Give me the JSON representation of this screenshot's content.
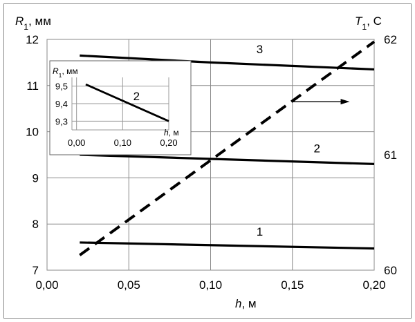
{
  "chart_data": [
    {
      "type": "line",
      "xlabel_var": "h",
      "xlabel_unit": ", м",
      "ylabel_var": "R",
      "ylabel_sub": "1",
      "ylabel_unit": ", мм",
      "y2label_var": "T",
      "y2label_sub": "1",
      "y2label_unit": ", С",
      "xlim": [
        0.0,
        0.2
      ],
      "ylim": [
        7,
        12
      ],
      "y2lim": [
        60,
        62
      ],
      "xticks": [
        "0,00",
        "0,05",
        "0,10",
        "0,15",
        "0,20"
      ],
      "xtick_values": [
        0.0,
        0.05,
        0.1,
        0.15,
        0.2
      ],
      "yticks": [
        "7",
        "8",
        "9",
        "10",
        "11",
        "12"
      ],
      "ytick_values": [
        7,
        8,
        9,
        10,
        11,
        12
      ],
      "y2ticks": [
        "60",
        "61",
        "62"
      ],
      "y2tick_values": [
        60,
        61,
        62
      ],
      "grid": true,
      "series": [
        {
          "name": "1",
          "axis": "left",
          "style": "solid",
          "x": [
            0.02,
            0.2
          ],
          "y": [
            7.6,
            7.47
          ],
          "label_at": [
            0.13,
            7.75
          ]
        },
        {
          "name": "2",
          "axis": "left",
          "style": "solid",
          "x": [
            0.02,
            0.2
          ],
          "y": [
            9.5,
            9.3
          ],
          "label_at": [
            0.165,
            9.55
          ]
        },
        {
          "name": "3",
          "axis": "left",
          "style": "solid",
          "x": [
            0.02,
            0.1,
            0.2
          ],
          "y": [
            11.65,
            11.5,
            11.35
          ],
          "label_at": [
            0.13,
            11.7
          ]
        },
        {
          "name": "T1",
          "axis": "right",
          "style": "dashed",
          "x": [
            0.02,
            0.2
          ],
          "y": [
            60.13,
            61.98
          ]
        }
      ],
      "arrow": {
        "x_from": 0.15,
        "x_to": 0.185,
        "y": 10.65
      }
    },
    {
      "type": "line",
      "inset": true,
      "xlabel_var": "h",
      "xlabel_unit": ", м",
      "ylabel_var": "R",
      "ylabel_sub": "1",
      "ylabel_unit": ", мм",
      "xlim": [
        -0.01,
        0.2
      ],
      "ylim": [
        9.25,
        9.55
      ],
      "xticks": [
        "0,00",
        "0,10",
        "0,20"
      ],
      "xtick_values": [
        0.0,
        0.1,
        0.2
      ],
      "yticks": [
        "9,3",
        "9,4",
        "9,5"
      ],
      "ytick_values": [
        9.3,
        9.4,
        9.5
      ],
      "grid": true,
      "series": [
        {
          "name": "2",
          "style": "solid",
          "x": [
            0.02,
            0.2
          ],
          "y": [
            9.51,
            9.3
          ],
          "label_at": [
            0.13,
            9.42
          ]
        }
      ]
    }
  ]
}
